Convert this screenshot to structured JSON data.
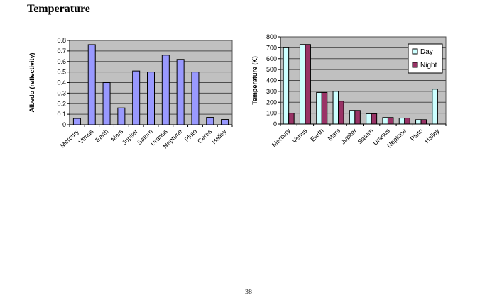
{
  "page": {
    "title": "Temperature",
    "page_number": "38"
  },
  "colors": {
    "plot_background": "#C0C0C0",
    "gridline": "#4d4d4d",
    "bar_border": "#000000",
    "albedo_bar": "#9999FF",
    "day_bar": "#CCFFFF",
    "night_bar": "#993366"
  },
  "chart_data": [
    {
      "type": "bar",
      "title": "",
      "categories": [
        "Mercury",
        "Venus",
        "Earth",
        "Mars",
        "Jupiter",
        "Saturn",
        "Uranus",
        "Neptune",
        "Pluto",
        "Ceres",
        "Halley"
      ],
      "values": [
        0.06,
        0.76,
        0.4,
        0.16,
        0.51,
        0.5,
        0.66,
        0.62,
        0.5,
        0.07,
        0.05
      ],
      "xlabel": "",
      "ylabel": "Albedo (reflectivity)",
      "ylim": [
        0,
        0.8
      ],
      "y_ticks": [
        "0",
        "0.1",
        "0.2",
        "0.3",
        "0.4",
        "0.5",
        "0.6",
        "0.7",
        "0.8"
      ],
      "grid": true,
      "legend": false,
      "bar_color": "#9999FF"
    },
    {
      "type": "bar",
      "title": "",
      "categories": [
        "Mercury",
        "Venus",
        "Earth",
        "Mars",
        "Jupiter",
        "Saturn",
        "Uranus",
        "Neptune",
        "Pluto",
        "Halley"
      ],
      "series": [
        {
          "name": "Day",
          "color": "#CCFFFF",
          "values": [
            700,
            730,
            290,
            300,
            125,
            95,
            60,
            55,
            40,
            320
          ]
        },
        {
          "name": "Night",
          "color": "#993366",
          "values": [
            100,
            730,
            290,
            210,
            125,
            95,
            60,
            55,
            40,
            null
          ]
        }
      ],
      "xlabel": "",
      "ylabel": "Temperature (K)",
      "ylim": [
        0,
        800
      ],
      "y_ticks": [
        "0",
        "100",
        "200",
        "300",
        "400",
        "500",
        "600",
        "700",
        "800"
      ],
      "grid": true,
      "legend": true,
      "legend_position": "top-right",
      "legend_labels": [
        "Day",
        "Night"
      ]
    }
  ]
}
